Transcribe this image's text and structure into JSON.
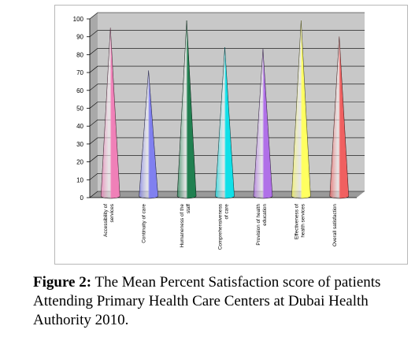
{
  "chart_data": {
    "type": "bar",
    "style": "3d-cone",
    "title": "",
    "xlabel": "",
    "ylabel": "",
    "ylim": [
      0,
      100
    ],
    "yticks": [
      0,
      10,
      20,
      30,
      40,
      50,
      60,
      70,
      80,
      90,
      100
    ],
    "grid": true,
    "categories": [
      [
        "Accessibility of",
        "services"
      ],
      [
        "Continuity of care"
      ],
      [
        "Humaneness of the",
        "staff"
      ],
      [
        "Comprehensiveness",
        "of care"
      ],
      [
        "Provision of health",
        "education"
      ],
      [
        "Effectiveness of",
        "health services"
      ],
      [
        "Overall satisfaction"
      ]
    ],
    "values": [
      96,
      72,
      100,
      85,
      84,
      100,
      91
    ],
    "colors": [
      "#f080b8",
      "#8080f0",
      "#208050",
      "#10e0e8",
      "#b070e8",
      "#ffff60",
      "#f06060"
    ]
  },
  "caption": {
    "label": "Figure 2:",
    "text": " The Mean Percent Satisfaction score of patients Attending Primary Health Care Centers at Dubai Health Authority 2010."
  }
}
